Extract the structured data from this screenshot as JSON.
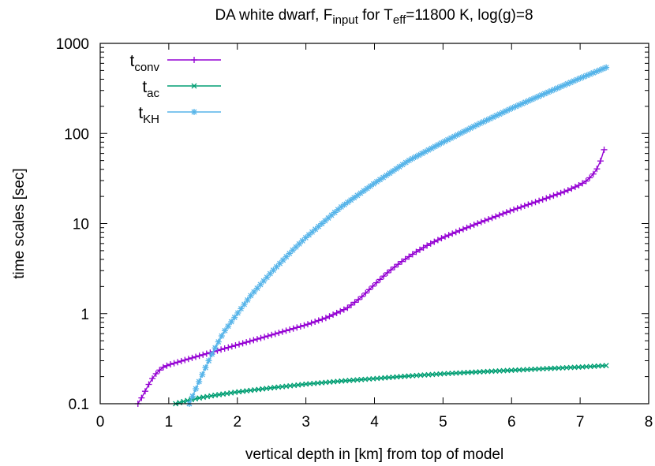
{
  "chart_data": {
    "type": "line",
    "title": {
      "parts": [
        {
          "t": "DA white dwarf, F"
        },
        {
          "t": "input",
          "sub": true
        },
        {
          "t": " for T"
        },
        {
          "t": "eff",
          "sub": true
        },
        {
          "t": "=11800 K, log(g)=8"
        }
      ]
    },
    "xlabel": "vertical depth in [km] from top of model",
    "ylabel": "time scales [sec]",
    "xlim": [
      0,
      8
    ],
    "ylim": [
      0.1,
      1000
    ],
    "yscale": "log",
    "grid": false,
    "legend_position": "top-left",
    "xticks": [
      0,
      1,
      2,
      3,
      4,
      5,
      6,
      7,
      8
    ],
    "yticks": [
      {
        "value": 0.1,
        "label": "0.1"
      },
      {
        "value": 1,
        "label": "1"
      },
      {
        "value": 10,
        "label": "10"
      },
      {
        "value": 100,
        "label": "100"
      },
      {
        "value": 1000,
        "label": "1000"
      }
    ],
    "series": [
      {
        "name": "t",
        "name_sub": "conv",
        "color": "#9400d3",
        "marker": "plus",
        "x": [
          0.55,
          0.6,
          0.65,
          0.7,
          0.75,
          0.8,
          0.85,
          0.9,
          1.0,
          1.2,
          1.5,
          2.0,
          2.5,
          3.0,
          3.3,
          3.6,
          3.8,
          4.0,
          4.2,
          4.4,
          4.6,
          4.8,
          5.0,
          5.2,
          5.5,
          6.0,
          6.5,
          6.8,
          7.0,
          7.1,
          7.2,
          7.25,
          7.3,
          7.35
        ],
        "y": [
          0.1,
          0.115,
          0.135,
          0.16,
          0.185,
          0.21,
          0.23,
          0.25,
          0.27,
          0.3,
          0.35,
          0.45,
          0.58,
          0.75,
          0.9,
          1.15,
          1.5,
          2.1,
          2.9,
          3.8,
          4.8,
          5.9,
          7.0,
          8.1,
          10.0,
          14.0,
          19.0,
          23.0,
          27.0,
          30.0,
          36.0,
          41.0,
          50.0,
          66.0
        ]
      },
      {
        "name": "t",
        "name_sub": "ac",
        "color": "#009e73",
        "marker": "cross",
        "x": [
          1.1,
          1.2,
          1.3,
          1.5,
          1.7,
          2.0,
          2.5,
          3.0,
          3.5,
          4.0,
          4.5,
          5.0,
          5.5,
          6.0,
          6.5,
          7.0,
          7.38
        ],
        "y": [
          0.1,
          0.105,
          0.11,
          0.118,
          0.125,
          0.135,
          0.15,
          0.165,
          0.178,
          0.19,
          0.203,
          0.215,
          0.225,
          0.235,
          0.245,
          0.255,
          0.265
        ]
      },
      {
        "name": "t",
        "name_sub": "KH",
        "color": "#56b4e9",
        "marker": "star",
        "x": [
          1.3,
          1.4,
          1.5,
          1.6,
          1.7,
          1.8,
          2.0,
          2.2,
          2.5,
          2.8,
          3.0,
          3.5,
          4.0,
          4.5,
          5.0,
          5.5,
          6.0,
          6.5,
          7.0,
          7.38
        ],
        "y": [
          0.1,
          0.15,
          0.22,
          0.32,
          0.45,
          0.62,
          1.0,
          1.6,
          2.9,
          5.0,
          7.0,
          15.0,
          28.0,
          50.0,
          80.0,
          125.0,
          190.0,
          280.0,
          410.0,
          540.0
        ]
      }
    ]
  }
}
